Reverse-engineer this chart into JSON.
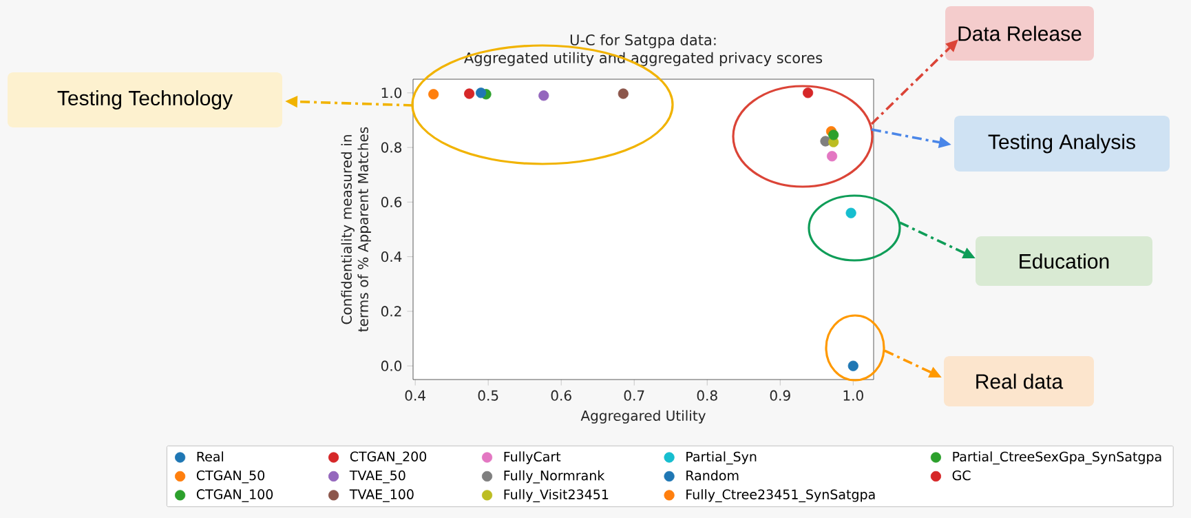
{
  "chart_data": {
    "type": "scatter",
    "title": "U-C for Satgpa data:",
    "subtitle": "Aggregated utility and aggregated privacy scores",
    "xlabel": "Aggregared Utility",
    "ylabel": "Confidentiality measured in terms of % Apparent Matches",
    "xlim": [
      0.397,
      1.028
    ],
    "ylim": [
      -0.05,
      1.05
    ],
    "xticks": [
      0.4,
      0.5,
      0.6,
      0.7,
      0.8,
      0.9,
      {
        "value": 1,
        "label": "1.0"
      }
    ],
    "yticks": [
      {
        "value": 0,
        "label": "0.0"
      },
      0.2,
      0.4,
      0.6,
      0.8,
      {
        "value": 1,
        "label": "1.0"
      }
    ],
    "grid": false,
    "legend": "bottom",
    "series": [
      {
        "name": "Real",
        "color": "#1f77b4",
        "x": [
          1.0
        ],
        "values": [
          0.0
        ]
      },
      {
        "name": "CTGAN_50",
        "color": "#ff7f0e",
        "x": [
          0.425
        ],
        "values": [
          0.995
        ]
      },
      {
        "name": "CTGAN_100",
        "color": "#2ca02c",
        "x": [
          0.497
        ],
        "values": [
          0.995
        ]
      },
      {
        "name": "CTGAN_200",
        "color": "#d62728",
        "x": [
          0.474
        ],
        "values": [
          0.997
        ]
      },
      {
        "name": "TVAE_50",
        "color": "#9467bd",
        "x": [
          0.576
        ],
        "values": [
          0.99
        ]
      },
      {
        "name": "TVAE_100",
        "color": "#8c564b",
        "x": [
          0.685
        ],
        "values": [
          0.997
        ]
      },
      {
        "name": "FullyCart",
        "color": "#e377c2",
        "x": [
          0.971
        ],
        "values": [
          0.768
        ]
      },
      {
        "name": "Fully_Normrank",
        "color": "#7f7f7f",
        "x": [
          0.962
        ],
        "values": [
          0.823
        ]
      },
      {
        "name": "Fully_Visit23451",
        "color": "#bcbd22",
        "x": [
          0.973
        ],
        "values": [
          0.82
        ]
      },
      {
        "name": "Partial_Syn",
        "color": "#17becf",
        "x": [
          0.997
        ],
        "values": [
          0.56
        ]
      },
      {
        "name": "Random",
        "color": "#1f77b4",
        "x": [
          0.49
        ],
        "values": [
          1.0
        ]
      },
      {
        "name": "Fully_Ctree23451_SynSatgpa",
        "color": "#ff7f0e",
        "x": [
          0.97
        ],
        "values": [
          0.859
        ]
      },
      {
        "name": "Partial_CtreeSexGpa_SynSatgpa",
        "color": "#2ca02c",
        "x": [
          0.973
        ],
        "values": [
          0.846
        ]
      },
      {
        "name": "GC",
        "color": "#d62728",
        "x": [
          0.938
        ],
        "values": [
          1.0
        ]
      }
    ],
    "annotations": [
      "Testing Technology",
      "Data Release",
      "Testing Analysis",
      "Education",
      "Real data"
    ]
  }
}
